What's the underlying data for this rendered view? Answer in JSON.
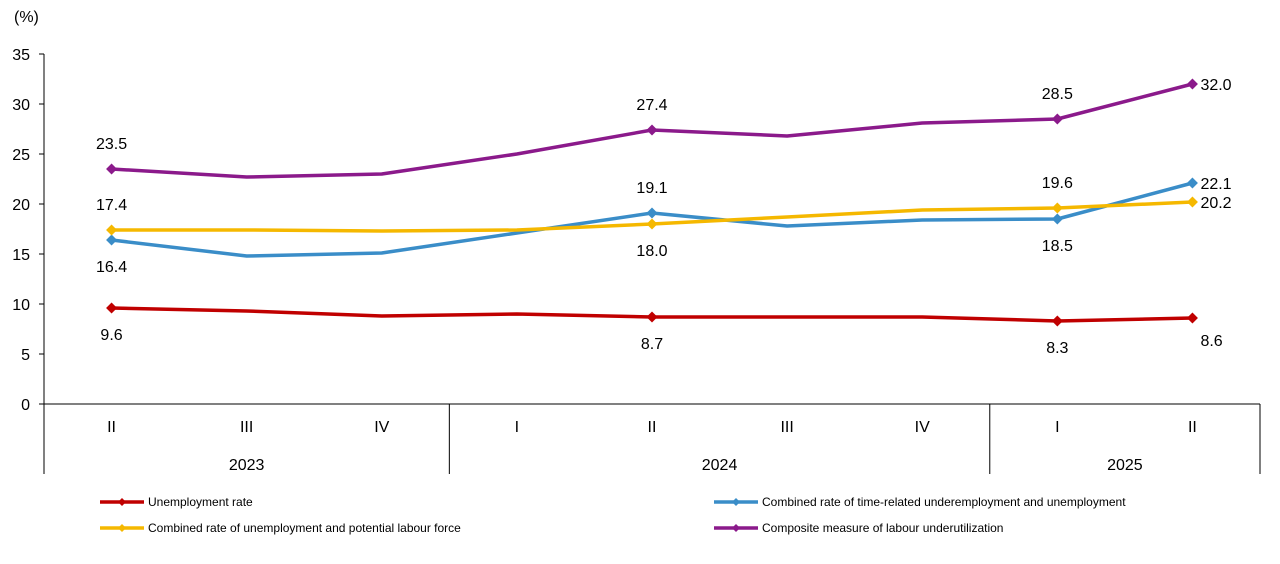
{
  "chart_data": {
    "type": "line",
    "title": "",
    "ylabel": "(%)",
    "xlabel": "",
    "ylim": [
      0,
      35
    ],
    "yticks": [
      0,
      5,
      10,
      15,
      20,
      25,
      30,
      35
    ],
    "categories": [
      "II",
      "III",
      "IV",
      "I",
      "II",
      "III",
      "IV",
      "I",
      "II"
    ],
    "year_groups": [
      {
        "label": "2023",
        "count": 3
      },
      {
        "label": "2024",
        "count": 4
      },
      {
        "label": "2025",
        "count": 2
      }
    ],
    "grid": false,
    "legend_position": "bottom",
    "series": [
      {
        "name": "Unemployment rate",
        "color": "#C00000",
        "values": [
          9.6,
          9.3,
          8.8,
          9.0,
          8.7,
          8.7,
          8.7,
          8.3,
          8.6
        ],
        "labels": [
          {
            "index": 0,
            "text": "9.6",
            "position": "below"
          },
          {
            "index": 4,
            "text": "8.7",
            "position": "below"
          },
          {
            "index": 7,
            "text": "8.3",
            "position": "below"
          },
          {
            "index": 8,
            "text": "8.6",
            "position": "below-right"
          }
        ],
        "markers": [
          0,
          4,
          7,
          8
        ]
      },
      {
        "name": "Combined rate of time-related underemployment and unemployment",
        "color": "#3A8DC8",
        "values": [
          16.4,
          14.8,
          15.1,
          17.1,
          19.1,
          17.8,
          18.4,
          18.5,
          22.1
        ],
        "labels": [
          {
            "index": 0,
            "text": "16.4",
            "position": "below"
          },
          {
            "index": 4,
            "text": "19.1",
            "position": "above"
          },
          {
            "index": 7,
            "text": "18.5",
            "position": "below"
          },
          {
            "index": 8,
            "text": "22.1",
            "position": "right"
          }
        ],
        "markers": [
          0,
          4,
          7,
          8
        ]
      },
      {
        "name": "Combined rate of unemployment and potential labour force",
        "color": "#F5B800",
        "values": [
          17.4,
          17.4,
          17.3,
          17.4,
          18.0,
          18.7,
          19.4,
          19.6,
          20.2
        ],
        "labels": [
          {
            "index": 0,
            "text": "17.4",
            "position": "above"
          },
          {
            "index": 4,
            "text": "18.0",
            "position": "below"
          },
          {
            "index": 7,
            "text": "19.6",
            "position": "above"
          },
          {
            "index": 8,
            "text": "20.2",
            "position": "right"
          }
        ],
        "markers": [
          0,
          4,
          7,
          8
        ]
      },
      {
        "name": "Composite measure of labour underutilization",
        "color": "#8B1A8B",
        "values": [
          23.5,
          22.7,
          23.0,
          25.0,
          27.4,
          26.8,
          28.1,
          28.5,
          32.0
        ],
        "labels": [
          {
            "index": 0,
            "text": "23.5",
            "position": "above"
          },
          {
            "index": 4,
            "text": "27.4",
            "position": "above"
          },
          {
            "index": 7,
            "text": "28.5",
            "position": "above"
          },
          {
            "index": 8,
            "text": "32.0",
            "position": "right"
          }
        ],
        "markers": [
          0,
          4,
          7,
          8
        ]
      }
    ],
    "legend_order": [
      0,
      1,
      2,
      3
    ]
  }
}
